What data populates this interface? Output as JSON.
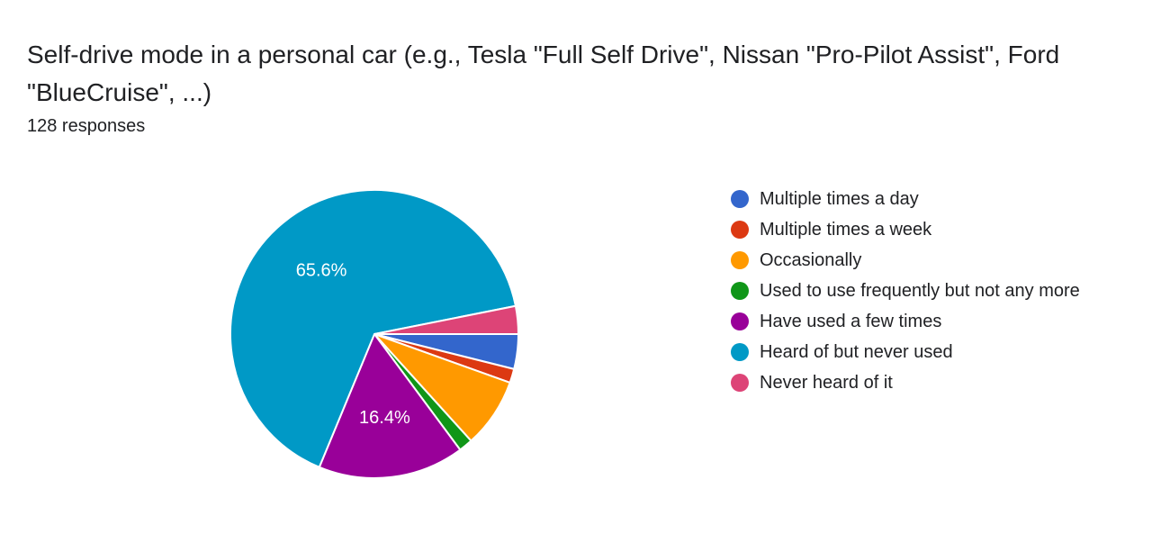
{
  "header": {
    "title": "Self-drive mode in a personal car (e.g., Tesla \"Full Self Drive\", Nissan \"Pro-Pilot Assist\", Ford \"BlueCruise\", ...)",
    "responses": "128 responses"
  },
  "chart_data": {
    "type": "pie",
    "title": "Self-drive mode in a personal car (e.g., Tesla \"Full Self Drive\", Nissan \"Pro-Pilot Assist\", Ford \"BlueCruise\", ...)",
    "subtitle": "128 responses",
    "categories": [
      "Multiple times a day",
      "Multiple times a week",
      "Occasionally",
      "Used to use frequently but not any more",
      "Have used a few times",
      "Heard of but never used",
      "Never heard of it"
    ],
    "values": [
      5,
      2,
      10,
      2,
      21,
      84,
      4
    ],
    "percent_labels": [
      "",
      "",
      "",
      "",
      "16.4%",
      "65.6%",
      ""
    ],
    "colors": [
      "#3366cc",
      "#dc3912",
      "#ff9900",
      "#109618",
      "#990099",
      "#0099c6",
      "#dd4477"
    ],
    "legend_position": "right"
  }
}
